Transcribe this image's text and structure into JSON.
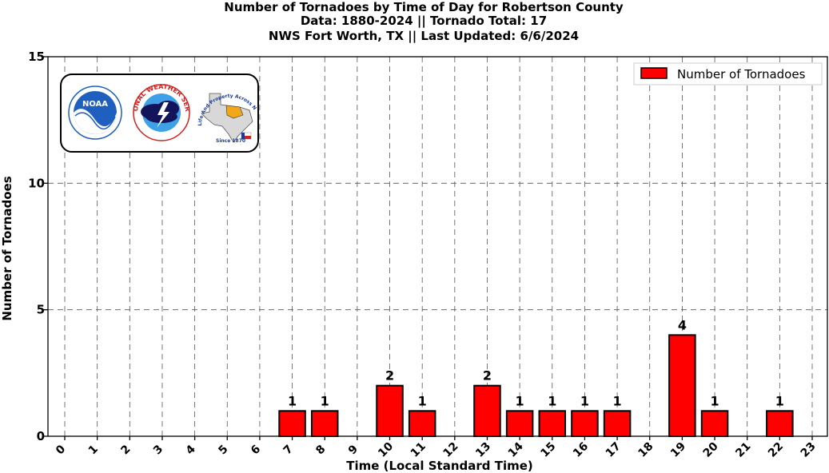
{
  "colors": {
    "bar": "#ff0000",
    "bar_edge": "#000000",
    "grid": "#555555",
    "noaa_blue": "#1f5fbf",
    "nws_red": "#d42020",
    "nws_navy": "#14145a",
    "texas_gray": "#d8d8d8",
    "texas_orange": "#f0a818"
  },
  "logos": {
    "noaa_text": "NOAA",
    "nws_ring_text": "NATIONAL WEATHER SERVICE",
    "fw_ring_text": "Protecting Life And Property Across North Texas",
    "fw_since": "Since 1870",
    "icons": [
      "noaa-logo-icon",
      "nws-logo-icon",
      "fort-worth-texas-logo-icon"
    ]
  },
  "chart_data": {
    "type": "bar",
    "title_lines": [
      "Number of Tornadoes by Time of Day for Robertson County",
      "Data: 1880-2024 || Tornado Total: 17",
      "NWS Fort Worth, TX || Last Updated: 6/6/2024"
    ],
    "xlabel": "Time (Local Standard Time)",
    "ylabel": "Number of Tornadoes",
    "categories": [
      "0",
      "1",
      "2",
      "3",
      "4",
      "5",
      "6",
      "7",
      "8",
      "9",
      "10",
      "11",
      "12",
      "13",
      "14",
      "15",
      "16",
      "17",
      "18",
      "19",
      "20",
      "21",
      "22",
      "23"
    ],
    "series": [
      {
        "name": "Number of Tornadoes",
        "values": [
          0,
          0,
          0,
          0,
          0,
          0,
          0,
          1,
          1,
          0,
          2,
          1,
          0,
          2,
          1,
          1,
          1,
          1,
          0,
          4,
          1,
          0,
          1,
          0
        ]
      }
    ],
    "data_labels": [
      "",
      "",
      "",
      "",
      "",
      "",
      "",
      "1",
      "1",
      "",
      "2",
      "1",
      "",
      "2",
      "1",
      "1",
      "1",
      "1",
      "",
      "4",
      "1",
      "",
      "1",
      ""
    ],
    "ylim": [
      0,
      15
    ],
    "yticks": [
      "0",
      "5",
      "10",
      "15"
    ],
    "ytick_values": [
      0,
      5,
      10,
      15
    ],
    "grid": true,
    "legend_position": "top-right"
  }
}
